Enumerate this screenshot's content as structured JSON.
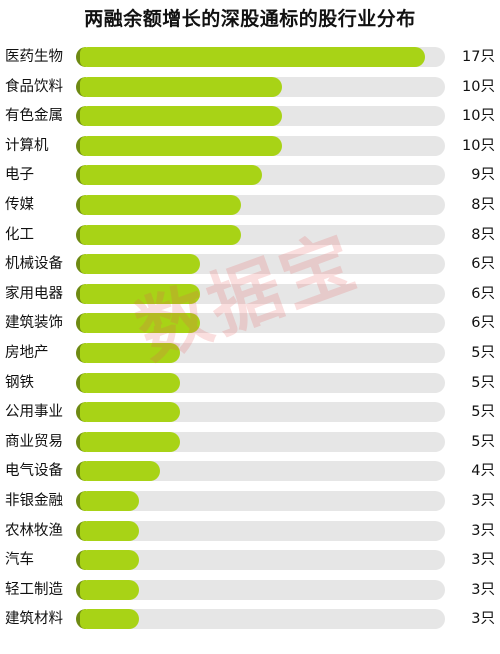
{
  "chart_data": {
    "type": "bar",
    "orientation": "horizontal",
    "title": "两融余额增长的深股通标的股行业分布",
    "categories": [
      "医药生物",
      "食品饮料",
      "有色金属",
      "计算机",
      "电子",
      "传媒",
      "化工",
      "机械设备",
      "家用电器",
      "建筑装饰",
      "房地产",
      "钢铁",
      "公用事业",
      "商业贸易",
      "电气设备",
      "非银金融",
      "农林牧渔",
      "汽车",
      "轻工制造",
      "建筑材料"
    ],
    "values": [
      17,
      10,
      10,
      10,
      9,
      8,
      8,
      6,
      6,
      6,
      5,
      5,
      5,
      5,
      4,
      3,
      3,
      3,
      3,
      3
    ],
    "value_labels": [
      "17只",
      "10只",
      "10只",
      "10只",
      "9只",
      "8只",
      "8只",
      "6只",
      "6只",
      "6只",
      "5只",
      "5只",
      "5只",
      "5只",
      "4只",
      "3只",
      "3只",
      "3只",
      "3只",
      "3只"
    ],
    "xlim": [
      0,
      18
    ],
    "grid": false,
    "legend": "none",
    "colors": {
      "bar": "#a8d316",
      "bar_cap": "#6e8a12",
      "track": "#e6e6e6"
    }
  },
  "watermark": "数据宝"
}
